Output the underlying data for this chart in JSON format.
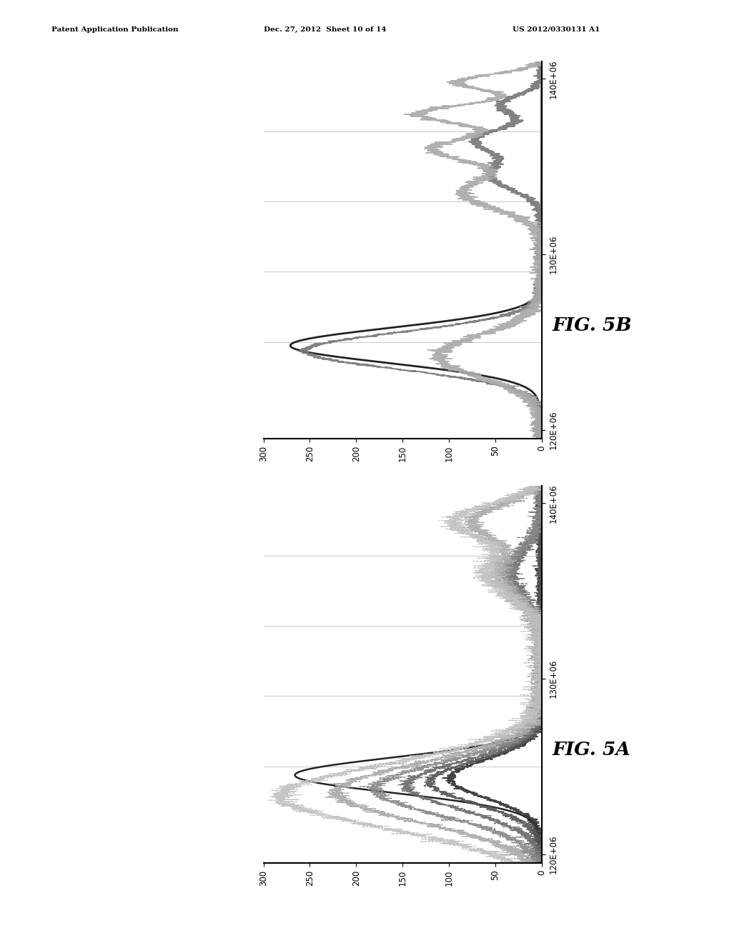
{
  "header_left": "Patent Application Publication",
  "header_mid": "Dec. 27, 2012  Sheet 10 of 14",
  "header_right": "US 2012/0330131 A1",
  "fig_a_label": "FIG. 5A",
  "fig_b_label": "FIG. 5B",
  "energy_ticks": [
    120000000,
    130000000,
    140000000
  ],
  "energy_ticklabels": [
    "120E+06",
    "130E+06",
    "140E+06"
  ],
  "count_ticks": [
    0,
    50,
    100,
    150,
    200,
    250,
    300
  ],
  "energy_min": 119500000,
  "energy_max": 141000000,
  "counts_max": 300,
  "bg_color": "#ffffff",
  "grid_color": "#cccccc",
  "spine_lw": 1.5
}
